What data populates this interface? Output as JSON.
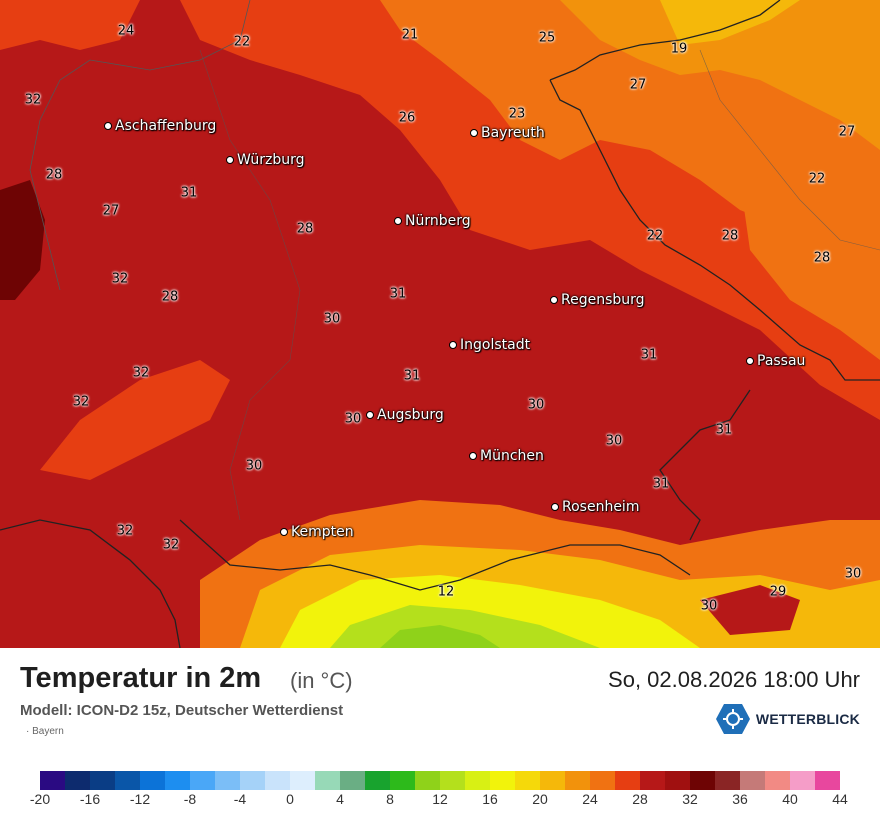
{
  "map": {
    "cities": [
      {
        "name": "Aschaffenburg"
      },
      {
        "name": "Würzburg"
      },
      {
        "name": "Bayreuth"
      },
      {
        "name": "Nürnberg"
      },
      {
        "name": "Regensburg"
      },
      {
        "name": "Ingolstadt"
      },
      {
        "name": "Passau"
      },
      {
        "name": "Augsburg"
      },
      {
        "name": "München"
      },
      {
        "name": "Rosenheim"
      },
      {
        "name": "Kempten"
      }
    ],
    "values": [
      "24",
      "22",
      "21",
      "25",
      "19",
      "32",
      "23",
      "27",
      "26",
      "27",
      "28",
      "31",
      "22",
      "27",
      "28",
      "22",
      "28",
      "32",
      "28",
      "28",
      "30",
      "31",
      "32",
      "31",
      "32",
      "30",
      "31",
      "30",
      "30",
      "30",
      "31",
      "31",
      "32",
      "32",
      "12",
      "30",
      "29",
      "30"
    ]
  },
  "footer": {
    "title": "Temperatur in 2m",
    "unit": "(in °C)",
    "datetime": "So, 02.08.2026 18:00 Uhr",
    "model": "Modell: ICON-D2 15z, Deutscher Wetterdienst",
    "region": "Bayern",
    "brand": "WETTERBLICK"
  },
  "legend": {
    "colors": [
      "#2a0a82",
      "#0d2b6e",
      "#0a3d85",
      "#0a56a8",
      "#0c73d8",
      "#1d8ef0",
      "#4aa7f7",
      "#7bbef7",
      "#a5d2f8",
      "#c9e3fb",
      "#ddeefd",
      "#97d9b7",
      "#6aae84",
      "#18a32e",
      "#2dba1b",
      "#8fd21a",
      "#b4e01c",
      "#d8f014",
      "#f2f30b",
      "#f5d90a",
      "#f5b80a",
      "#f2920c",
      "#f07212",
      "#e63e12",
      "#b61818",
      "#a01010",
      "#6e0404",
      "#8a2525",
      "#c57a78",
      "#f28a84",
      "#f59dc8",
      "#e8479e"
    ],
    "ticks": [
      "-20",
      "-16",
      "-12",
      "-8",
      "-4",
      "0",
      "4",
      "8",
      "12",
      "16",
      "20",
      "24",
      "28",
      "32",
      "36",
      "40",
      "44"
    ]
  }
}
